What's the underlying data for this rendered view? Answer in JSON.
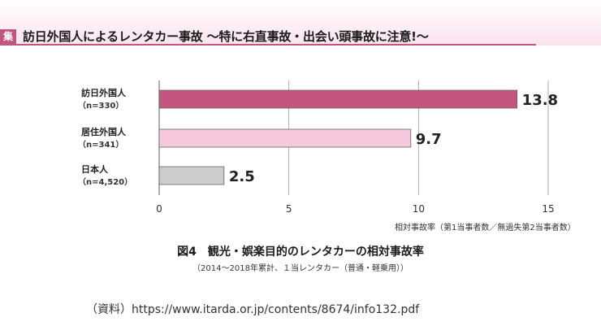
{
  "header": {
    "badge": "集",
    "title": "訪日外国人によるレンタカー事故 ～特に右直事故・出会い頭事故に注意!～"
  },
  "chart_data": {
    "type": "bar",
    "orientation": "horizontal",
    "categories": [
      {
        "label": "訪日外国人",
        "n": "（n=330）"
      },
      {
        "label": "居住外国人",
        "n": "（n=341）"
      },
      {
        "label": "日本人",
        "n": "（n=4,520）"
      }
    ],
    "values": [
      13.8,
      9.7,
      2.5
    ],
    "value_labels": [
      "13.8",
      "9.7",
      "2.5"
    ],
    "bar_colors": [
      "#c2567f",
      "#f6c8dc",
      "#cccccc"
    ],
    "xlim": [
      0,
      15
    ],
    "xticks": [
      0,
      5,
      10,
      15
    ],
    "xlabel": "相対事故率（第1当事者数／無過失第2当事者数）",
    "grid": true
  },
  "figure": {
    "number": "図4",
    "title": "観光・娯楽目的のレンタカーの相対事故率",
    "subtitle": "（2014～2018年累計、１当レンタカー（普通・軽乗用））"
  },
  "source": "（資料）https://www.itarda.or.jp/contents/8674/info132.pdf"
}
